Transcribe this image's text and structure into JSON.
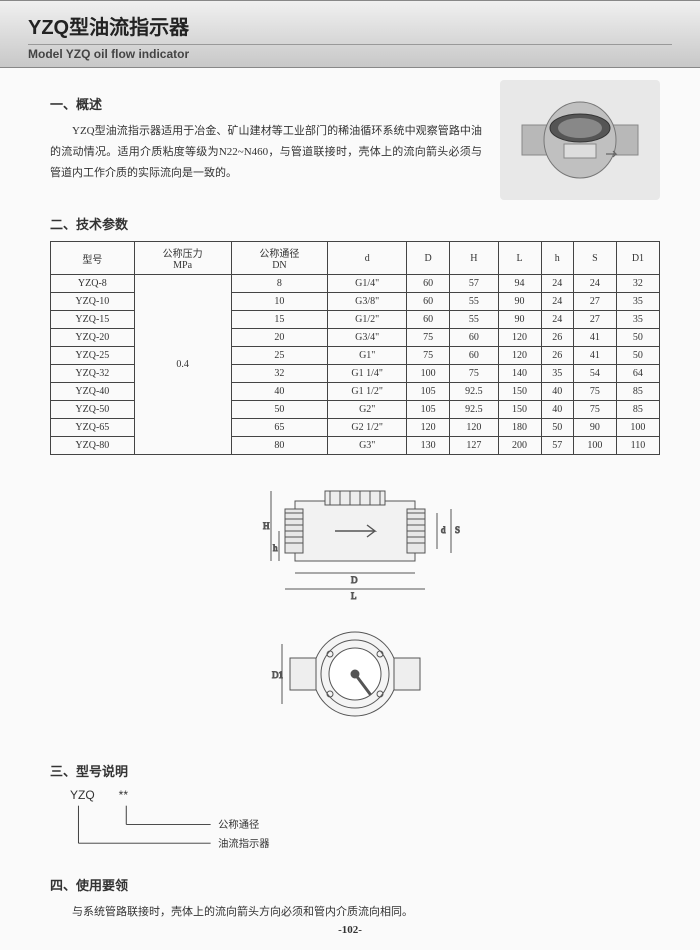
{
  "header": {
    "title_cn": "YZQ型油流指示器",
    "title_en": "Model YZQ oil flow indicator"
  },
  "section1": {
    "title": "一、概述",
    "text": "YZQ型油流指示器适用于冶金、矿山建材等工业部门的稀油循环系统中观察管路中油的流动情况。适用介质粘度等级为N22~N460，与管道联接时，壳体上的流向箭头必须与管道内工作介质的实际流向是一致的。"
  },
  "section2": {
    "title": "二、技术参数",
    "columns": [
      "型号",
      "公称压力\nMPa",
      "公称通径\nDN",
      "d",
      "D",
      "H",
      "L",
      "h",
      "S",
      "D1"
    ],
    "pressure": "0.4",
    "rows": [
      [
        "YZQ-8",
        "8",
        "G1/4\"",
        "60",
        "57",
        "94",
        "24",
        "24",
        "32"
      ],
      [
        "YZQ-10",
        "10",
        "G3/8\"",
        "60",
        "55",
        "90",
        "24",
        "27",
        "35"
      ],
      [
        "YZQ-15",
        "15",
        "G1/2\"",
        "60",
        "55",
        "90",
        "24",
        "27",
        "35"
      ],
      [
        "YZQ-20",
        "20",
        "G3/4\"",
        "75",
        "60",
        "120",
        "26",
        "41",
        "50"
      ],
      [
        "YZQ-25",
        "25",
        "G1\"",
        "75",
        "60",
        "120",
        "26",
        "41",
        "50"
      ],
      [
        "YZQ-32",
        "32",
        "G1 1/4\"",
        "100",
        "75",
        "140",
        "35",
        "54",
        "64"
      ],
      [
        "YZQ-40",
        "40",
        "G1 1/2\"",
        "105",
        "92.5",
        "150",
        "40",
        "75",
        "85"
      ],
      [
        "YZQ-50",
        "50",
        "G2\"",
        "105",
        "92.5",
        "150",
        "40",
        "75",
        "85"
      ],
      [
        "YZQ-65",
        "65",
        "G2 1/2\"",
        "120",
        "120",
        "180",
        "50",
        "90",
        "100"
      ],
      [
        "YZQ-80",
        "80",
        "G3\"",
        "130",
        "127",
        "200",
        "57",
        "100",
        "110"
      ]
    ]
  },
  "section3": {
    "title": "三、型号说明",
    "model_prefix": "YZQ",
    "model_stars": "**",
    "line1_label": "公称通径",
    "line2_label": "油流指示器"
  },
  "section4": {
    "title": "四、使用要领",
    "text": "与系统管路联接时，壳体上的流向箭头方向必须和管内介质流向相同。"
  },
  "page_number": "-102-",
  "diagram": {
    "labels_side": {
      "H": "H",
      "h": "h",
      "d": "d",
      "S": "S"
    },
    "labels_bottom": {
      "D": "D",
      "L": "L"
    },
    "front_label": "D1",
    "stroke": "#555"
  }
}
